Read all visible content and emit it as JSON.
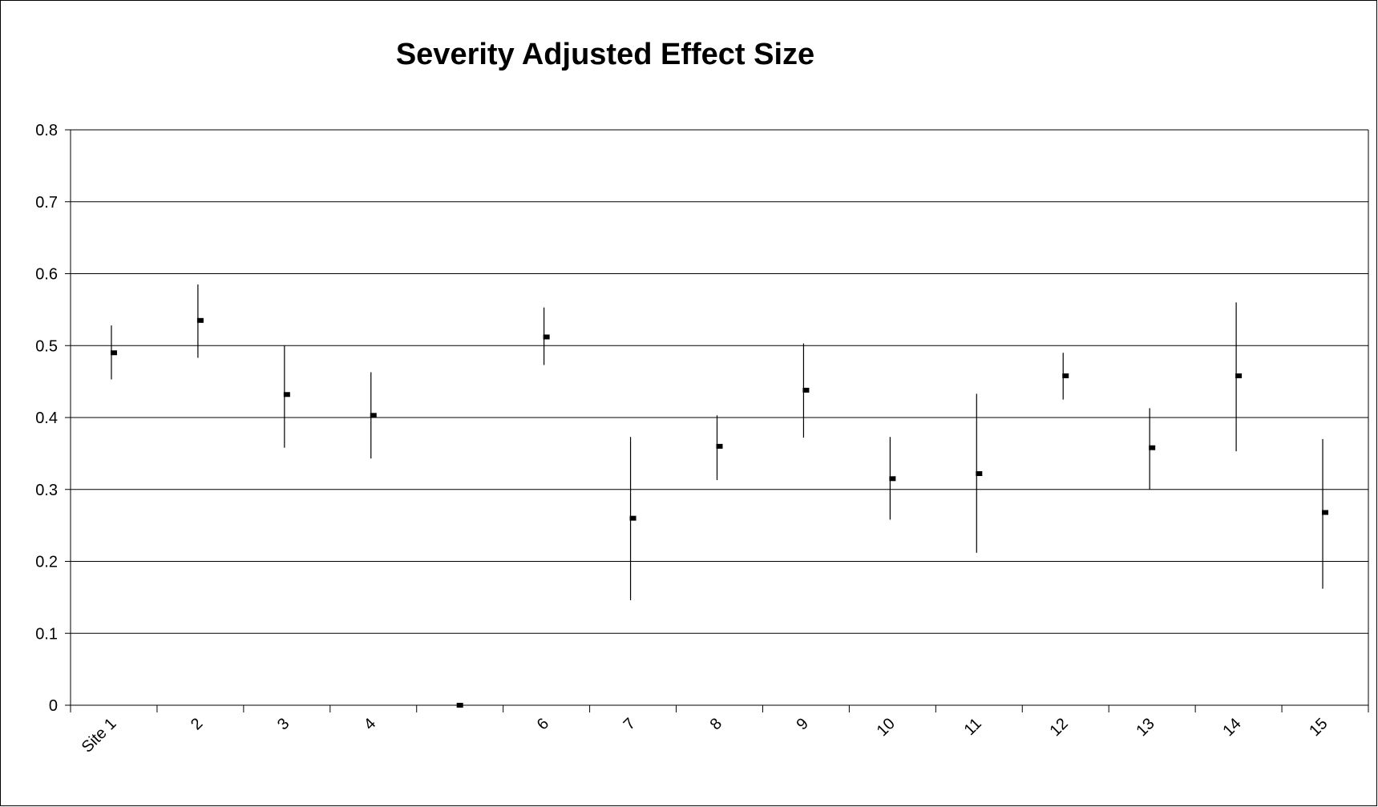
{
  "chart_data": {
    "type": "scatter",
    "title": "Severity Adjusted Effect Size",
    "xlabel": "",
    "ylabel": "",
    "ylim": [
      0,
      0.8
    ],
    "y_ticks": [
      "0",
      "0.1",
      "0.2",
      "0.3",
      "0.4",
      "0.5",
      "0.6",
      "0.7",
      "0.8"
    ],
    "categories": [
      "Site 1",
      "2",
      "3",
      "4",
      "",
      "6",
      "7",
      "8",
      "9",
      "10",
      "11",
      "12",
      "13",
      "14",
      "15"
    ],
    "series": [
      {
        "values": [
          0.49,
          0.535,
          0.432,
          0.403,
          0.0,
          0.512,
          0.26,
          0.36,
          0.438,
          0.315,
          0.322,
          0.458,
          0.358,
          0.458,
          0.268
        ],
        "low": [
          0.453,
          0.483,
          0.358,
          0.343,
          0.0,
          0.473,
          0.146,
          0.313,
          0.372,
          0.258,
          0.212,
          0.425,
          0.3,
          0.353,
          0.162
        ],
        "high": [
          0.528,
          0.585,
          0.5,
          0.463,
          0.0,
          0.553,
          0.373,
          0.403,
          0.503,
          0.373,
          0.433,
          0.49,
          0.413,
          0.56,
          0.37
        ]
      }
    ],
    "grid": true,
    "legend": "none",
    "colors": {
      "marker": "#000000",
      "errorbar": "#000000",
      "grid": "#000000",
      "frame": "#000000"
    }
  }
}
